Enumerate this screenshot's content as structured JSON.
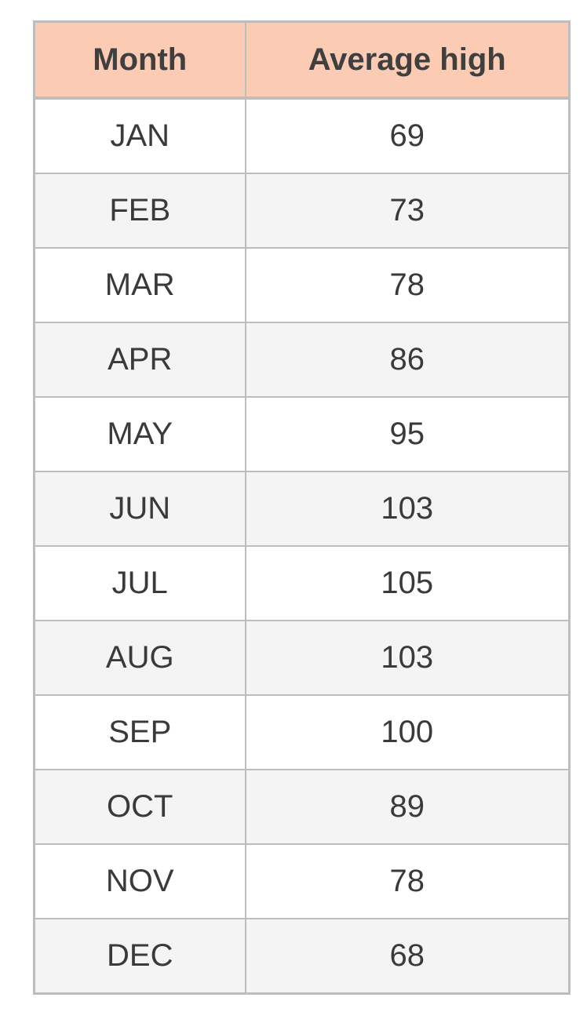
{
  "chart_data": {
    "type": "table",
    "columns": [
      "Month",
      "Average high"
    ],
    "rows": [
      [
        "JAN",
        "69"
      ],
      [
        "FEB",
        "73"
      ],
      [
        "MAR",
        "78"
      ],
      [
        "APR",
        "86"
      ],
      [
        "MAY",
        "95"
      ],
      [
        "JUN",
        "103"
      ],
      [
        "JUL",
        "105"
      ],
      [
        "AUG",
        "103"
      ],
      [
        "SEP",
        "100"
      ],
      [
        "OCT",
        "89"
      ],
      [
        "NOV",
        "78"
      ],
      [
        "DEC",
        "68"
      ]
    ]
  },
  "colors": {
    "header_bg": "#fccbb4",
    "row_even_bg": "#ffffff",
    "row_odd_bg": "#f4f4f4",
    "border": "#bdbdbd",
    "text": "#3a3a3a"
  }
}
